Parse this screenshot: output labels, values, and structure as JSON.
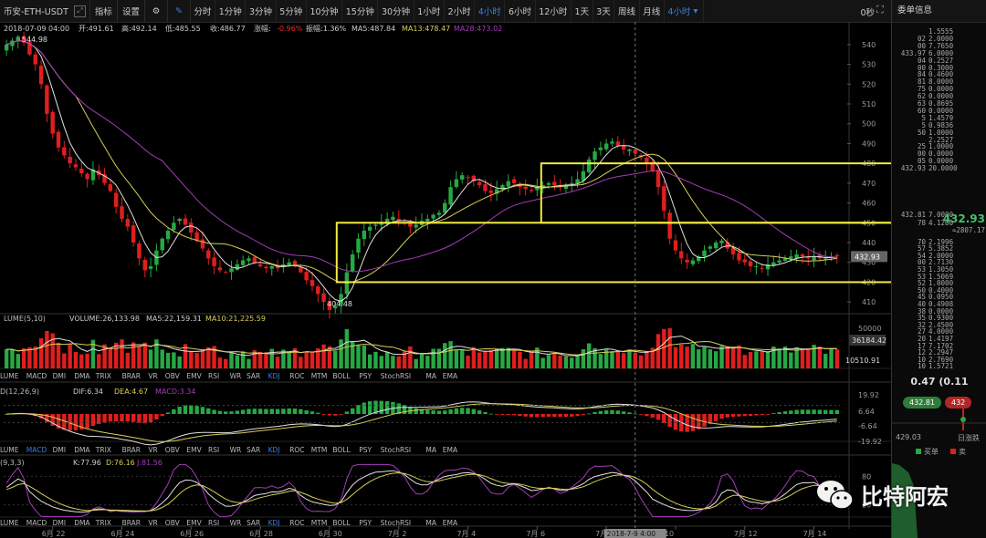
{
  "toolbar": {
    "symbol": "币安-ETH-USDT",
    "buttons": [
      "指标",
      "设置"
    ],
    "timeframes": [
      "分时",
      "1分钟",
      "3分钟",
      "5分钟",
      "10分钟",
      "15分钟",
      "30分钟",
      "1小时",
      "2小时",
      "4小时",
      "6小时",
      "12小时",
      "1天",
      "3天",
      "周线",
      "月线"
    ],
    "active_timeframe": "4小时",
    "selected_timeframe": "4小时",
    "seconds": "0秒"
  },
  "right_panel": {
    "title": "委单信息",
    "asks_top": [
      {
        "p": "",
        "q": "1.5555"
      },
      {
        "p": "02",
        "q": "2.0000"
      },
      {
        "p": "00",
        "q": "7.7650"
      },
      {
        "p": "433.97",
        "q": "6.0000"
      },
      {
        "p": "04",
        "q": "0.2527"
      },
      {
        "p": "00",
        "q": "0.3000"
      },
      {
        "p": "84",
        "q": "0.4600"
      },
      {
        "p": "81",
        "q": "8.0000"
      },
      {
        "p": "75",
        "q": "0.0000"
      },
      {
        "p": "62",
        "q": "0.0000"
      },
      {
        "p": "63",
        "q": "0.8695"
      },
      {
        "p": "60",
        "q": "0.0000"
      },
      {
        "p": "5",
        "q": "1.4579"
      },
      {
        "p": "5",
        "q": "0.9836"
      },
      {
        "p": "50",
        "q": "1.0000"
      },
      {
        "p": "",
        "q": "2.2527"
      },
      {
        "p": "25",
        "q": "1.0000"
      },
      {
        "p": "00",
        "q": "0.0000"
      },
      {
        "p": "05",
        "q": "0.0000"
      },
      {
        "p": "432.93",
        "q": "20.0000"
      }
    ],
    "last_price": "432.93",
    "last_price_usd": "≈2807.17",
    "bids": [
      {
        "p": "432.81",
        "q": "7.0000"
      },
      {
        "p": "78",
        "q": "4.1200"
      },
      {
        "p": "",
        "q": ""
      },
      {
        "p": "70",
        "q": "2.1996"
      },
      {
        "p": "57",
        "q": "5.3852"
      },
      {
        "p": "54",
        "q": "2.0000"
      },
      {
        "p": "00",
        "q": "2.7130"
      },
      {
        "p": "53",
        "q": "1.3050"
      },
      {
        "p": "53",
        "q": "1.5069"
      },
      {
        "p": "52",
        "q": "1.0000"
      },
      {
        "p": "50",
        "q": "0.4000"
      },
      {
        "p": "45",
        "q": "0.0950"
      },
      {
        "p": "40",
        "q": "0.4908"
      },
      {
        "p": "38",
        "q": "0.0000"
      },
      {
        "p": "35",
        "q": "0.9300"
      },
      {
        "p": "32",
        "q": "2.4500"
      },
      {
        "p": "27",
        "q": "4.0000"
      },
      {
        "p": "20",
        "q": "1.4197"
      },
      {
        "p": "17",
        "q": "7.1702"
      },
      {
        "p": "12",
        "q": "2.2947"
      },
      {
        "p": "10",
        "q": "2.7690"
      },
      {
        "p": "10",
        "q": "1.5721"
      }
    ],
    "ratio": "0.47 (0.11",
    "buy_pill": "432.81",
    "sell_pill": "432",
    "low_label": "429.03",
    "day_label": "日涨跌",
    "buy_legend": "买单",
    "sell_legend": "卖"
  },
  "watermark": "比特阿宏",
  "chart_data": {
    "type": "candlestick",
    "info_line": {
      "date": "2018-07-09 04:00",
      "open_label": "开:491.61",
      "high_label": "高:492.14",
      "low_label": "低:485.55",
      "close_label": "收:486.77",
      "change_label": "涨幅:",
      "change": "-0.96%",
      "amp_label": "振幅:1.36%",
      "ma5": "MA5:487.84",
      "ma13": "MA13:478.47",
      "ma28": "MA28:473.02"
    },
    "price_axis": {
      "min": 405,
      "max": 545,
      "ticks": [
        410,
        420,
        430,
        440,
        450,
        460,
        470,
        480,
        490,
        500,
        510,
        520,
        530,
        540
      ]
    },
    "annotations": {
      "high": "544.98",
      "low": "404.48",
      "last": "432.93"
    },
    "boxes": [
      {
        "x0": 57,
        "x1": 180,
        "y0": 420,
        "y1": 450
      },
      {
        "x0": 92,
        "x1": 180,
        "y0": 450,
        "y1": 480
      }
    ],
    "x_ticks": [
      {
        "i": 8,
        "label": "6月 22"
      },
      {
        "i": 20,
        "label": "6月 24"
      },
      {
        "i": 32,
        "label": "6月 26"
      },
      {
        "i": 44,
        "label": "6月 28"
      },
      {
        "i": 56,
        "label": "6月 30"
      },
      {
        "i": 68,
        "label": "7月 2"
      },
      {
        "i": 80,
        "label": "7月 4"
      },
      {
        "i": 92,
        "label": "7月 6"
      },
      {
        "i": 104,
        "label": "7月 8"
      },
      {
        "i": 116,
        "label": "10"
      },
      {
        "i": 128,
        "label": "7月 12"
      },
      {
        "i": 140,
        "label": "7月 14"
      }
    ],
    "crosshair": {
      "i": 109,
      "label": "2018-7-9 4:00"
    },
    "close_series": [
      540,
      542,
      544,
      541,
      535,
      530,
      520,
      505,
      495,
      488,
      484,
      480,
      478,
      475,
      472,
      477,
      474,
      470,
      466,
      458,
      452,
      448,
      440,
      432,
      426,
      428,
      436,
      442,
      446,
      450,
      452,
      449,
      445,
      441,
      437,
      432,
      428,
      426,
      425,
      427,
      429,
      431,
      432,
      430,
      428,
      427,
      428,
      427,
      429,
      430,
      428,
      425,
      421,
      418,
      414,
      410,
      406,
      408,
      414,
      425,
      434,
      442,
      446,
      448,
      449,
      450,
      452,
      453,
      451,
      450,
      448,
      449,
      451,
      452,
      454,
      455,
      460,
      468,
      472,
      474,
      473,
      471,
      469,
      466,
      465,
      467,
      469,
      471,
      470,
      468,
      467,
      466,
      468,
      469,
      470,
      469,
      468,
      469,
      470,
      472,
      476,
      482,
      486,
      488,
      490,
      491,
      489,
      487,
      487,
      485,
      483,
      480,
      476,
      468,
      456,
      442,
      436,
      432,
      430,
      431,
      433,
      436,
      438,
      440,
      441,
      437,
      434,
      431,
      430,
      428,
      428,
      427,
      429,
      430,
      431,
      432,
      433,
      434,
      433,
      432,
      433,
      432,
      432,
      433,
      433
    ],
    "volume": {
      "header": "VOLUME:26,133.98",
      "ma5": "MA5:22,159.31",
      "ma10": "MA10:21,225.59",
      "label": "LUME(5,10)",
      "axis_top": "50000",
      "tag1": "36184.42",
      "tag2": "10510.91",
      "max": 50000
    },
    "macd": {
      "label": "D(12,26,9)",
      "dif": "DIF:6.34",
      "dea": "DEA:4.67",
      "macd": "MACD:3.34",
      "axis": [
        "19.92",
        "6.64",
        "-6.64",
        "-19.92"
      ]
    },
    "kdj": {
      "label": "(9,3,3)",
      "k": "K:77.96",
      "d": "D:76.16",
      "j": "J:81.56",
      "axis": [
        "80",
        "20"
      ]
    },
    "indicator_tabs": [
      "LUME",
      "MACD",
      "DMI",
      "DMA",
      "TRIX",
      "BRAR",
      "VR",
      "OBV",
      "EMV",
      "RSI",
      "WR",
      "SAR",
      "KDJ",
      "ROC",
      "MTM",
      "BOLL",
      "PSY",
      "StochRSI",
      "MA",
      "EMA"
    ],
    "colors": {
      "up": "#27a844",
      "down": "#e01e1e",
      "ma5": "#e0e0e0",
      "ma13": "#d7cf53",
      "ma28": "#a43cb9",
      "box": "#f2ec3f"
    }
  }
}
